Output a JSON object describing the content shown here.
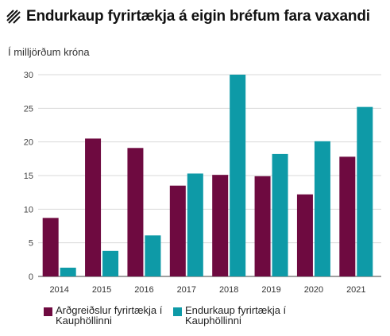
{
  "title": "Endurkaup fyrirtækja á eigin bréfum fara vaxandi",
  "subtitle": "Í milljörðum króna",
  "colors": {
    "series1": "#6e0a40",
    "series2": "#0e9aa7",
    "grid": "#d9d9d9",
    "axis": "#666666"
  },
  "chart_data": {
    "type": "bar",
    "categories": [
      "2014",
      "2015",
      "2016",
      "2017",
      "2018",
      "2019",
      "2020",
      "2021"
    ],
    "series": [
      {
        "name": "Arðgreiðslur fyrirtækja í Kauphöllinni",
        "values": [
          8.7,
          20.5,
          19.1,
          13.5,
          15.1,
          14.9,
          12.2,
          17.8
        ]
      },
      {
        "name": "Endurkaup fyrirtækja í Kauphöllinni",
        "values": [
          1.3,
          3.8,
          6.1,
          15.3,
          30.0,
          18.2,
          20.1,
          25.2
        ]
      }
    ],
    "ylim": [
      0,
      30
    ],
    "yticks": [
      "0",
      "5",
      "10",
      "15",
      "20",
      "25",
      "30"
    ],
    "grid": true,
    "legend_position": "bottom-left"
  }
}
